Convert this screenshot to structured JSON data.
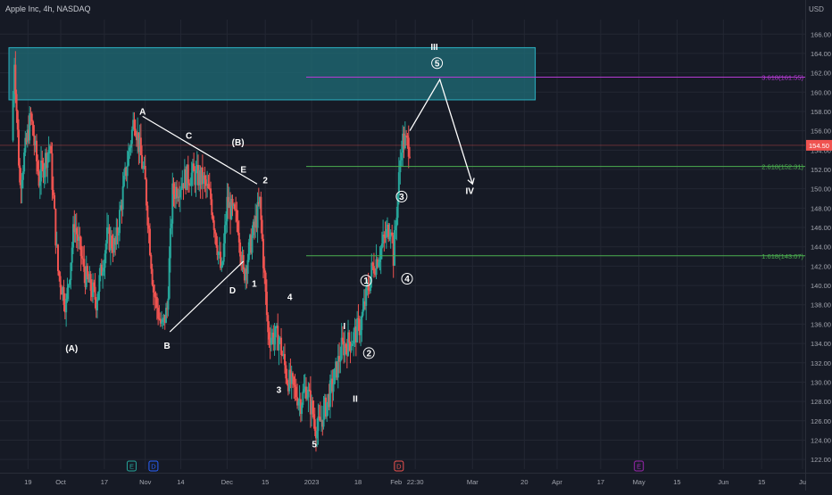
{
  "header": {
    "symbol_label": "Apple Inc, 4h, NASDAQ",
    "currency": "USD"
  },
  "colors": {
    "background": "#161a25",
    "grid": "#232733",
    "axis_text": "#a3a6af",
    "up": "#26a69a",
    "down": "#ef5350",
    "zone_fill": "#1f6e78",
    "zone_border": "#2bb0c0",
    "fib_green": "#4caf50",
    "fib_purple": "#b53bd3",
    "price_badge": "#ef5350",
    "wave_label": "#ffffff"
  },
  "chart_data": {
    "type": "candlestick",
    "title": "",
    "xlabel": "",
    "ylabel": "",
    "ylim": [
      121,
      167.5
    ],
    "y_ticks": [
      122,
      124,
      126,
      128,
      130,
      132,
      134,
      136,
      138,
      140,
      142,
      144,
      146,
      148,
      150,
      152,
      154,
      156,
      158,
      160,
      162,
      164,
      166
    ],
    "x_ticks": [
      {
        "label": "19",
        "date": "2022-09-19"
      },
      {
        "label": "Oct",
        "date": "2022-10-01"
      },
      {
        "label": "17",
        "date": "2022-10-17"
      },
      {
        "label": "Nov",
        "date": "2022-11-01"
      },
      {
        "label": "14",
        "date": "2022-11-14"
      },
      {
        "label": "Dec",
        "date": "2022-12-01"
      },
      {
        "label": "15",
        "date": "2022-12-15"
      },
      {
        "label": "2023",
        "date": "2023-01-01"
      },
      {
        "label": "18",
        "date": "2023-01-18"
      },
      {
        "label": "Feb",
        "date": "2023-02-01"
      },
      {
        "label": "22:30",
        "date": "2023-02-08"
      },
      {
        "label": "Mar",
        "date": "2023-03-01"
      },
      {
        "label": "20",
        "date": "2023-03-20"
      },
      {
        "label": "Apr",
        "date": "2023-04-01"
      },
      {
        "label": "17",
        "date": "2023-04-17"
      },
      {
        "label": "May",
        "date": "2023-05-01"
      },
      {
        "label": "15",
        "date": "2023-05-15"
      },
      {
        "label": "Jun",
        "date": "2023-06-01"
      },
      {
        "label": "15",
        "date": "2023-06-15"
      },
      {
        "label": "Ju",
        "date": "2023-06-30"
      }
    ],
    "price_path": [
      {
        "date": "2022-09-13",
        "price": 155.0
      },
      {
        "date": "2022-09-14",
        "price": 163.5
      },
      {
        "date": "2022-09-16",
        "price": 150.5
      },
      {
        "date": "2022-09-20",
        "price": 157.5
      },
      {
        "date": "2022-09-23",
        "price": 151.0
      },
      {
        "date": "2022-09-27",
        "price": 154.5
      },
      {
        "date": "2022-09-30",
        "price": 141.5
      },
      {
        "date": "2022-10-03",
        "price": 138.0
      },
      {
        "date": "2022-10-06",
        "price": 146.5
      },
      {
        "date": "2022-10-10",
        "price": 141.0
      },
      {
        "date": "2022-10-14",
        "price": 138.5
      },
      {
        "date": "2022-10-18",
        "price": 145.0
      },
      {
        "date": "2022-10-21",
        "price": 144.0
      },
      {
        "date": "2022-10-25",
        "price": 152.0
      },
      {
        "date": "2022-10-28",
        "price": 157.5
      },
      {
        "date": "2022-11-01",
        "price": 150.5
      },
      {
        "date": "2022-11-04",
        "price": 139.5
      },
      {
        "date": "2022-11-07",
        "price": 135.5
      },
      {
        "date": "2022-11-09",
        "price": 137.5
      },
      {
        "date": "2022-11-11",
        "price": 149.5
      },
      {
        "date": "2022-11-15",
        "price": 151.0
      },
      {
        "date": "2022-11-18",
        "price": 151.5
      },
      {
        "date": "2022-11-22",
        "price": 151.0
      },
      {
        "date": "2022-11-25",
        "price": 149.0
      },
      {
        "date": "2022-11-29",
        "price": 141.0
      },
      {
        "date": "2022-12-01",
        "price": 148.5
      },
      {
        "date": "2022-12-05",
        "price": 146.5
      },
      {
        "date": "2022-12-07",
        "price": 141.0
      },
      {
        "date": "2022-12-09",
        "price": 143.5
      },
      {
        "date": "2022-12-13",
        "price": 148.5
      },
      {
        "date": "2022-12-16",
        "price": 135.0
      },
      {
        "date": "2022-12-20",
        "price": 134.5
      },
      {
        "date": "2022-12-23",
        "price": 130.5
      },
      {
        "date": "2022-12-28",
        "price": 128.0
      },
      {
        "date": "2022-12-30",
        "price": 129.5
      },
      {
        "date": "2023-01-03",
        "price": 125.0
      },
      {
        "date": "2023-01-05",
        "price": 126.5
      },
      {
        "date": "2023-01-09",
        "price": 130.0
      },
      {
        "date": "2023-01-12",
        "price": 133.5
      },
      {
        "date": "2023-01-16",
        "price": 134.5
      },
      {
        "date": "2023-01-19",
        "price": 136.0
      },
      {
        "date": "2023-01-23",
        "price": 141.5
      },
      {
        "date": "2023-01-26",
        "price": 143.5
      },
      {
        "date": "2023-01-30",
        "price": 146.5
      },
      {
        "date": "2023-01-31",
        "price": 143.0
      },
      {
        "date": "2023-02-02",
        "price": 151.0
      },
      {
        "date": "2023-02-03",
        "price": 155.0
      },
      {
        "date": "2023-02-06",
        "price": 154.5
      }
    ],
    "last_price": "154.50",
    "zone": {
      "date_from": "2022-09-12",
      "date_to": "2023-03-24",
      "price_low": 159.2,
      "price_high": 164.6
    },
    "fib_levels": [
      {
        "label": "3.618(161.55)",
        "price": 161.55,
        "date_from": "2022-12-30",
        "color": "#b53bd3"
      },
      {
        "label": "2.618(152.31)",
        "price": 152.31,
        "date_from": "2022-12-30",
        "color": "#4caf50"
      },
      {
        "label": "1.618(143.07)",
        "price": 143.07,
        "date_from": "2022-12-30",
        "color": "#4caf50"
      }
    ],
    "projection": [
      {
        "date": "2023-02-06",
        "price": 156.0
      },
      {
        "date": "2023-02-17",
        "price": 161.3
      },
      {
        "date": "2023-03-01",
        "price": 150.5
      }
    ],
    "wxy_lines": [
      [
        {
          "date": "2022-10-31",
          "price": 157.5
        },
        {
          "date": "2022-12-12",
          "price": 150.5
        }
      ],
      [
        {
          "date": "2022-11-10",
          "price": 135.2
        },
        {
          "date": "2022-12-07",
          "price": 142.5
        }
      ]
    ],
    "wave_labels": [
      {
        "text": "(A)",
        "date": "2022-10-05",
        "price": 133.5,
        "style": "plain"
      },
      {
        "text": "A",
        "date": "2022-10-31",
        "price": 158.0,
        "style": "plain"
      },
      {
        "text": "C",
        "date": "2022-11-17",
        "price": 155.5,
        "style": "plain"
      },
      {
        "text": "(B)",
        "date": "2022-12-05",
        "price": 154.8,
        "style": "plain"
      },
      {
        "text": "E",
        "date": "2022-12-07",
        "price": 152.0,
        "style": "plain"
      },
      {
        "text": "2",
        "date": "2022-12-15",
        "price": 150.9,
        "style": "plain"
      },
      {
        "text": "B",
        "date": "2022-11-09",
        "price": 133.8,
        "style": "plain"
      },
      {
        "text": "D",
        "date": "2022-12-03",
        "price": 139.5,
        "style": "plain"
      },
      {
        "text": "1",
        "date": "2022-12-11",
        "price": 140.2,
        "style": "plain"
      },
      {
        "text": "4",
        "date": "2022-12-24",
        "price": 138.8,
        "style": "plain"
      },
      {
        "text": "3",
        "date": "2022-12-20",
        "price": 129.2,
        "style": "plain"
      },
      {
        "text": "5",
        "date": "2023-01-02",
        "price": 123.6,
        "style": "plain"
      },
      {
        "text": "I",
        "date": "2023-01-13",
        "price": 135.8,
        "style": "plain"
      },
      {
        "text": "II",
        "date": "2023-01-17",
        "price": 128.3,
        "style": "plain"
      },
      {
        "text": "III",
        "date": "2023-02-15",
        "price": 164.7,
        "style": "plain"
      },
      {
        "text": "IV",
        "date": "2023-02-28",
        "price": 149.8,
        "style": "plain"
      },
      {
        "text": "1",
        "date": "2023-01-21",
        "price": 140.5,
        "style": "circled"
      },
      {
        "text": "2",
        "date": "2023-01-22",
        "price": 133.0,
        "style": "circled"
      },
      {
        "text": "3",
        "date": "2023-02-03",
        "price": 149.2,
        "style": "circled"
      },
      {
        "text": "4",
        "date": "2023-02-05",
        "price": 140.7,
        "style": "circled"
      },
      {
        "text": "5",
        "date": "2023-02-16",
        "price": 163.0,
        "style": "circled"
      }
    ],
    "event_markers": [
      {
        "text": "E",
        "date": "2022-10-27",
        "color": "#26a69a"
      },
      {
        "text": "D",
        "date": "2022-11-04",
        "color": "#2962ff"
      },
      {
        "text": "D",
        "date": "2023-02-02",
        "color": "#ef5350"
      },
      {
        "text": "E",
        "date": "2023-05-01",
        "color": "#9c27b0"
      }
    ]
  }
}
